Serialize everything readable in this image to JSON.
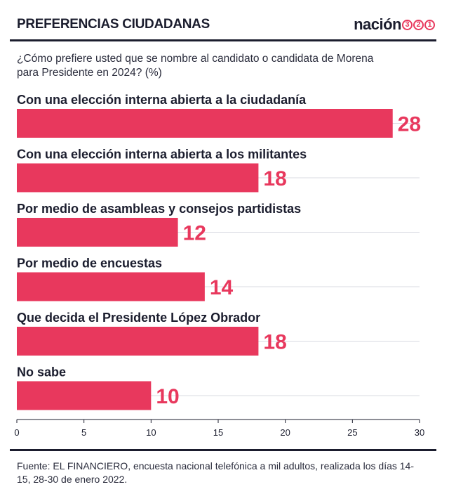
{
  "header": {
    "title": "PREFERENCIAS CIUDADANAS",
    "logo_word": "nación",
    "logo_digits": [
      "3",
      "2",
      "1"
    ]
  },
  "question": "¿Cómo prefiere usted que se nombre al candidato o candidata de Morena para Presidente en 2024? (%)",
  "footer": "Fuente: EL FINANCIERO, encuesta nacional telefónica a mil adultos, realizada los días 14-15, 28-30 de enero 2022.",
  "colors": {
    "bar": "#e8385d",
    "value_label": "#e8385d",
    "text": "#1b1d2e",
    "grid": "#d9dbe2"
  },
  "chart_data": {
    "type": "bar",
    "orientation": "horizontal",
    "categories": [
      "Con una elección interna abierta a la ciudadanía",
      "Con una elección interna abierta a los militantes",
      "Por medio de asambleas y consejos partidistas",
      "Por medio de encuestas",
      "Que decida el Presidente López Obrador",
      "No sabe"
    ],
    "values": [
      28,
      18,
      12,
      14,
      18,
      10
    ],
    "data_labels": [
      "28",
      "18",
      "12",
      "14",
      "18",
      "10"
    ],
    "xlim": [
      0,
      30
    ],
    "x_ticks": [
      0,
      5,
      10,
      15,
      20,
      25,
      30
    ],
    "x_tick_labels": [
      "0",
      "5",
      "10",
      "15",
      "20",
      "25",
      "30"
    ],
    "grid": true
  }
}
